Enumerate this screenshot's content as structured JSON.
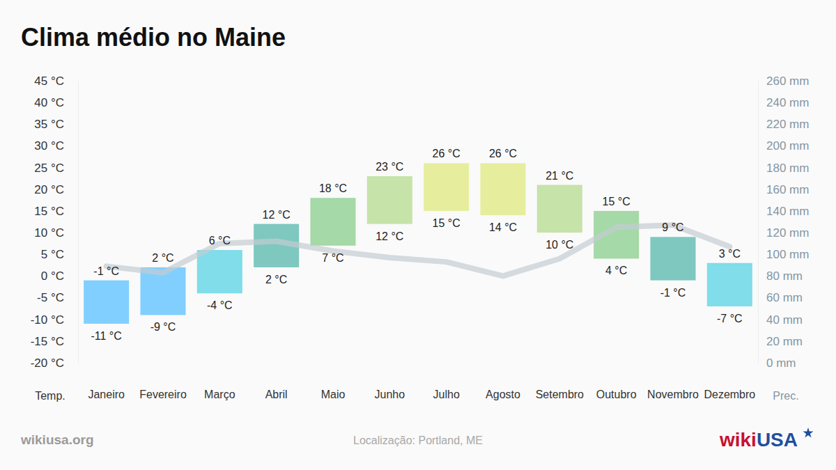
{
  "chart_data": {
    "type": "bar",
    "title": "Clima médio no Maine",
    "source": "wikiusa.org",
    "location": "Localização: Portland, ME",
    "logo": [
      "wiki",
      "USA"
    ],
    "y_label": "Temp.",
    "y2_label": "Prec.",
    "categories": [
      "Janeiro",
      "Fevereiro",
      "Março",
      "Abril",
      "Maio",
      "Junho",
      "Julho",
      "Agosto",
      "Setembro",
      "Outubro",
      "Novembro",
      "Dezembro"
    ],
    "series": [
      {
        "type": "bar",
        "values": [
          -1,
          2,
          6,
          12,
          18,
          23,
          26,
          26,
          21,
          15,
          9,
          3
        ],
        "value_labels": [
          "-1 °C",
          "2 °C",
          "6 °C",
          "12 °C",
          "18 °C",
          "23 °C",
          "26 °C",
          "26 °C",
          "21 °C",
          "15 °C",
          "9 °C",
          "3 °C"
        ],
        "colors": [
          "#80cfff",
          "#80cfff",
          "#80dde9",
          "#7ec8c0",
          "#a5d9a7",
          "#c6e3a9",
          "#e6ee9d",
          "#e6ee9d",
          "#c6e3a9",
          "#a5d9a7",
          "#7ec8c0",
          "#80dde9"
        ],
        "data_labels": true
      },
      {
        "type": "bar",
        "values": [
          -11,
          -9,
          -4,
          2,
          7,
          12,
          15,
          14,
          10,
          4,
          -1,
          -7
        ],
        "value_labels": [
          "-11 °C",
          "-9 °C",
          "-4 °C",
          "2 °C",
          "7 °C",
          "12 °C",
          "15 °C",
          "14 °C",
          "10 °C",
          "4 °C",
          "-1 °C",
          "-7 °C"
        ],
        "data_labels": true
      },
      {
        "type": "line",
        "axis": "y2",
        "color": "#c3ccd1",
        "values": [
          89,
          83,
          110,
          112,
          103,
          97,
          93,
          80,
          96,
          125,
          127,
          107
        ]
      }
    ],
    "ylim": [
      -20,
      45
    ],
    "yticks": [
      {
        "value": -20,
        "label": "-20 °C"
      },
      {
        "value": -15,
        "label": "-15 °C"
      },
      {
        "value": -10,
        "label": "-10 °C"
      },
      {
        "value": -5,
        "label": "-5 °C"
      },
      {
        "value": 0,
        "label": "0 °C"
      },
      {
        "value": 5,
        "label": "5 °C"
      },
      {
        "value": 10,
        "label": "10 °C"
      },
      {
        "value": 15,
        "label": "15 °C"
      },
      {
        "value": 20,
        "label": "20 °C"
      },
      {
        "value": 25,
        "label": "25 °C"
      },
      {
        "value": 30,
        "label": "30 °C"
      },
      {
        "value": 35,
        "label": "35 °C"
      },
      {
        "value": 40,
        "label": "40 °C"
      },
      {
        "value": 45,
        "label": "45 °C"
      }
    ],
    "y2lim": [
      0,
      260
    ],
    "y2ticks": [
      {
        "value": 0,
        "label": "0 mm"
      },
      {
        "value": 20,
        "label": "20 mm"
      },
      {
        "value": 40,
        "label": "40 mm"
      },
      {
        "value": 60,
        "label": "60 mm"
      },
      {
        "value": 80,
        "label": "80 mm"
      },
      {
        "value": 100,
        "label": "100 mm"
      },
      {
        "value": 120,
        "label": "120 mm"
      },
      {
        "value": 140,
        "label": "140 mm"
      },
      {
        "value": 160,
        "label": "160 mm"
      },
      {
        "value": 180,
        "label": "180 mm"
      },
      {
        "value": 200,
        "label": "200 mm"
      },
      {
        "value": 220,
        "label": "220 mm"
      },
      {
        "value": 240,
        "label": "240 mm"
      },
      {
        "value": 260,
        "label": "260 mm"
      }
    ],
    "grid": false
  }
}
